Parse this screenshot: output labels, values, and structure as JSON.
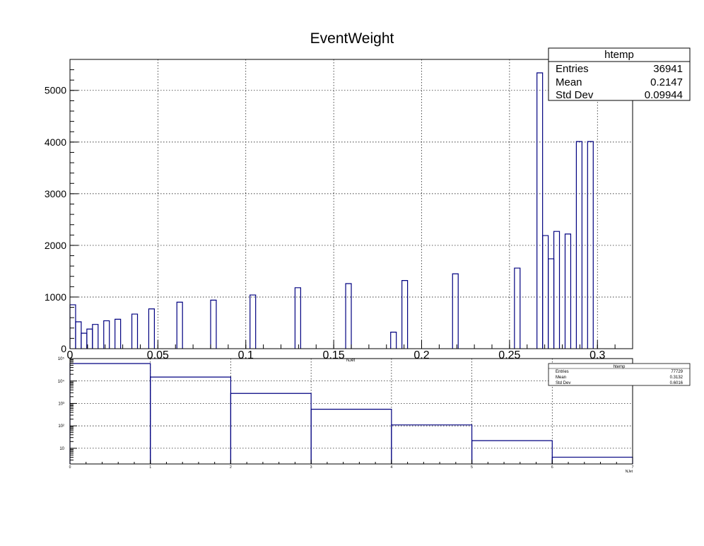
{
  "chart_data": [
    {
      "type": "bar",
      "title": "EventWeight",
      "xlabel": "",
      "ylabel": "",
      "xlim": [
        0,
        0.32
      ],
      "ylim": [
        0,
        5600
      ],
      "grid": true,
      "y_scale": "linear",
      "xticks": [
        {
          "v": 0,
          "label": "0"
        },
        {
          "v": 0.05,
          "label": "0.05"
        },
        {
          "v": 0.1,
          "label": "0.1"
        },
        {
          "v": 0.15,
          "label": "0.15"
        },
        {
          "v": 0.2,
          "label": "0.2"
        },
        {
          "v": 0.25,
          "label": "0.25"
        },
        {
          "v": 0.3,
          "label": "0.3"
        }
      ],
      "yticks": [
        {
          "v": 0,
          "label": "0"
        },
        {
          "v": 1000,
          "label": "1000"
        },
        {
          "v": 2000,
          "label": "2000"
        },
        {
          "v": 3000,
          "label": "3000"
        },
        {
          "v": 4000,
          "label": "4000"
        },
        {
          "v": 5000,
          "label": "5000"
        }
      ],
      "bin_width": 0.0032,
      "bins": [
        {
          "x": 0.0,
          "y": 850
        },
        {
          "x": 0.0032,
          "y": 520
        },
        {
          "x": 0.0064,
          "y": 300
        },
        {
          "x": 0.0096,
          "y": 380
        },
        {
          "x": 0.0128,
          "y": 470
        },
        {
          "x": 0.0192,
          "y": 540
        },
        {
          "x": 0.0256,
          "y": 570
        },
        {
          "x": 0.0352,
          "y": 670
        },
        {
          "x": 0.0448,
          "y": 770
        },
        {
          "x": 0.0608,
          "y": 900
        },
        {
          "x": 0.08,
          "y": 940
        },
        {
          "x": 0.1024,
          "y": 1040
        },
        {
          "x": 0.128,
          "y": 1180
        },
        {
          "x": 0.1568,
          "y": 1260
        },
        {
          "x": 0.1824,
          "y": 320
        },
        {
          "x": 0.1888,
          "y": 1320
        },
        {
          "x": 0.2176,
          "y": 1450
        },
        {
          "x": 0.2528,
          "y": 1560
        },
        {
          "x": 0.2656,
          "y": 5340
        },
        {
          "x": 0.2688,
          "y": 2190
        },
        {
          "x": 0.272,
          "y": 1740
        },
        {
          "x": 0.2752,
          "y": 2270
        },
        {
          "x": 0.2816,
          "y": 2220
        },
        {
          "x": 0.288,
          "y": 4010
        },
        {
          "x": 0.2944,
          "y": 4010
        }
      ],
      "stats": {
        "name": "htemp",
        "entries_label": "Entries",
        "entries": "36941",
        "mean_label": "Mean",
        "mean": "0.2147",
        "std_label": "Std Dev",
        "std": "0.09944"
      }
    },
    {
      "type": "bar",
      "title": "",
      "xlabel": "NJet",
      "xlabel_top": "NJet",
      "ylabel": "",
      "xlim": [
        0,
        7
      ],
      "ylim": [
        2,
        100000
      ],
      "grid": true,
      "y_scale": "log",
      "xticks": [
        {
          "v": 0,
          "label": "0"
        },
        {
          "v": 1,
          "label": "1"
        },
        {
          "v": 2,
          "label": "2"
        },
        {
          "v": 3,
          "label": "3"
        },
        {
          "v": 4,
          "label": "4"
        },
        {
          "v": 5,
          "label": "5"
        },
        {
          "v": 6,
          "label": "6"
        },
        {
          "v": 7,
          "label": "7"
        }
      ],
      "yticks": [
        {
          "v": 10,
          "label": "10"
        },
        {
          "v": 100,
          "label": "10²"
        },
        {
          "v": 1000,
          "label": "10³"
        },
        {
          "v": 10000,
          "label": "10⁴"
        },
        {
          "v": 100000,
          "label": "10⁵"
        }
      ],
      "bin_width": 1,
      "bins": [
        {
          "x": 0,
          "y": 60000
        },
        {
          "x": 1,
          "y": 15000
        },
        {
          "x": 2,
          "y": 2800
        },
        {
          "x": 3,
          "y": 550
        },
        {
          "x": 4,
          "y": 110
        },
        {
          "x": 5,
          "y": 22
        },
        {
          "x": 6,
          "y": 4
        }
      ],
      "stats": {
        "name": "htemp",
        "entries_label": "Entries",
        "entries": "77729",
        "mean_label": "Mean",
        "mean": "0.3132",
        "std_label": "Std Dev",
        "std": "0.6016"
      }
    }
  ]
}
